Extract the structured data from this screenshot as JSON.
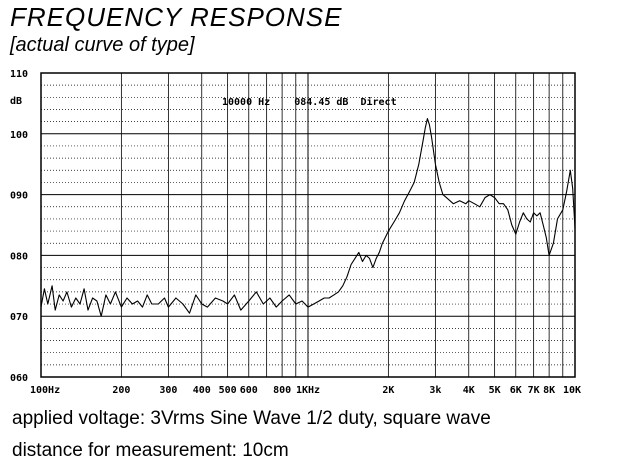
{
  "title": "FREQUENCY  RESPONSE",
  "subtitle": "[actual curve of type]",
  "notes": {
    "line1": "applied voltage: 3Vrms Sine Wave 1/2 duty, square wave",
    "line2": "distance for measurement: 10cm"
  },
  "chart_data": {
    "type": "line",
    "xscale": "log",
    "xlim": [
      100,
      10000
    ],
    "ylim": [
      60,
      110
    ],
    "ylabel": "dB",
    "grid": true,
    "readout": "10000 Hz    084.45 dB  Direct",
    "x_ticks": [
      {
        "value": 100,
        "label": "100Hz"
      },
      {
        "value": 200,
        "label": "200"
      },
      {
        "value": 300,
        "label": "300"
      },
      {
        "value": 400,
        "label": "400"
      },
      {
        "value": 500,
        "label": "500"
      },
      {
        "value": 600,
        "label": "600"
      },
      {
        "value": 800,
        "label": "800"
      },
      {
        "value": 1000,
        "label": "1KHz"
      },
      {
        "value": 2000,
        "label": "2K"
      },
      {
        "value": 3000,
        "label": "3k"
      },
      {
        "value": 4000,
        "label": "4K"
      },
      {
        "value": 5000,
        "label": "5K"
      },
      {
        "value": 6000,
        "label": "6K"
      },
      {
        "value": 7000,
        "label": "7K"
      },
      {
        "value": 8000,
        "label": "8K"
      },
      {
        "value": 10000,
        "label": "10K"
      }
    ],
    "y_ticks": [
      {
        "value": 110,
        "label": "110"
      },
      {
        "value": 100,
        "label": "100"
      },
      {
        "value": 90,
        "label": "090"
      },
      {
        "value": 80,
        "label": "080"
      },
      {
        "value": 70,
        "label": "070"
      },
      {
        "value": 60,
        "label": "060"
      }
    ],
    "series": [
      {
        "color": "#000000",
        "x": [
          100,
          103,
          106,
          110,
          113,
          117,
          121,
          125,
          130,
          135,
          140,
          145,
          150,
          156,
          162,
          168,
          175,
          182,
          190,
          200,
          210,
          220,
          230,
          240,
          250,
          260,
          275,
          290,
          300,
          320,
          340,
          360,
          380,
          400,
          420,
          450,
          480,
          500,
          530,
          560,
          600,
          640,
          680,
          720,
          760,
          800,
          850,
          900,
          950,
          1000,
          1050,
          1100,
          1150,
          1200,
          1250,
          1300,
          1350,
          1400,
          1450,
          1500,
          1550,
          1600,
          1650,
          1700,
          1750,
          1800,
          1850,
          1900,
          1950,
          2000,
          2100,
          2200,
          2300,
          2400,
          2500,
          2600,
          2700,
          2750,
          2800,
          2850,
          2900,
          3000,
          3100,
          3200,
          3300,
          3500,
          3700,
          3900,
          4000,
          4200,
          4400,
          4600,
          4800,
          5000,
          5200,
          5400,
          5600,
          5800,
          6000,
          6200,
          6400,
          6600,
          6800,
          7000,
          7200,
          7400,
          7600,
          7800,
          8000,
          8300,
          8600,
          9000,
          9300,
          9600,
          9800,
          10000
        ],
        "y": [
          71.5,
          74.5,
          72.0,
          75.0,
          71.0,
          73.5,
          72.5,
          74.0,
          71.5,
          73.0,
          72.0,
          74.5,
          71.0,
          73.0,
          72.5,
          70.0,
          73.5,
          72.0,
          74.0,
          71.5,
          73.0,
          72.0,
          72.5,
          71.5,
          73.5,
          72.0,
          72.0,
          73.0,
          71.5,
          73.0,
          72.0,
          70.5,
          73.5,
          72.0,
          71.5,
          73.0,
          72.5,
          72.0,
          73.5,
          71.0,
          72.5,
          74.0,
          72.0,
          73.0,
          71.5,
          72.5,
          73.5,
          72.0,
          72.5,
          71.5,
          72.0,
          72.5,
          73.0,
          73.0,
          73.5,
          74.0,
          75.0,
          76.5,
          78.5,
          79.5,
          80.5,
          79.0,
          80.0,
          79.5,
          78.0,
          79.5,
          80.5,
          82.0,
          83.0,
          84.0,
          85.5,
          87.0,
          89.0,
          90.5,
          92.0,
          95.0,
          99.0,
          101.0,
          102.5,
          101.5,
          99.5,
          95.0,
          92.0,
          90.0,
          89.5,
          88.5,
          89.0,
          88.5,
          89.0,
          88.5,
          88.0,
          89.5,
          90.0,
          89.5,
          88.5,
          88.5,
          87.5,
          85.0,
          83.5,
          85.5,
          87.0,
          86.0,
          85.5,
          87.0,
          86.5,
          87.0,
          85.0,
          83.0,
          80.0,
          82.0,
          86.0,
          87.5,
          90.5,
          94.0,
          91.0,
          84.45
        ]
      }
    ]
  }
}
